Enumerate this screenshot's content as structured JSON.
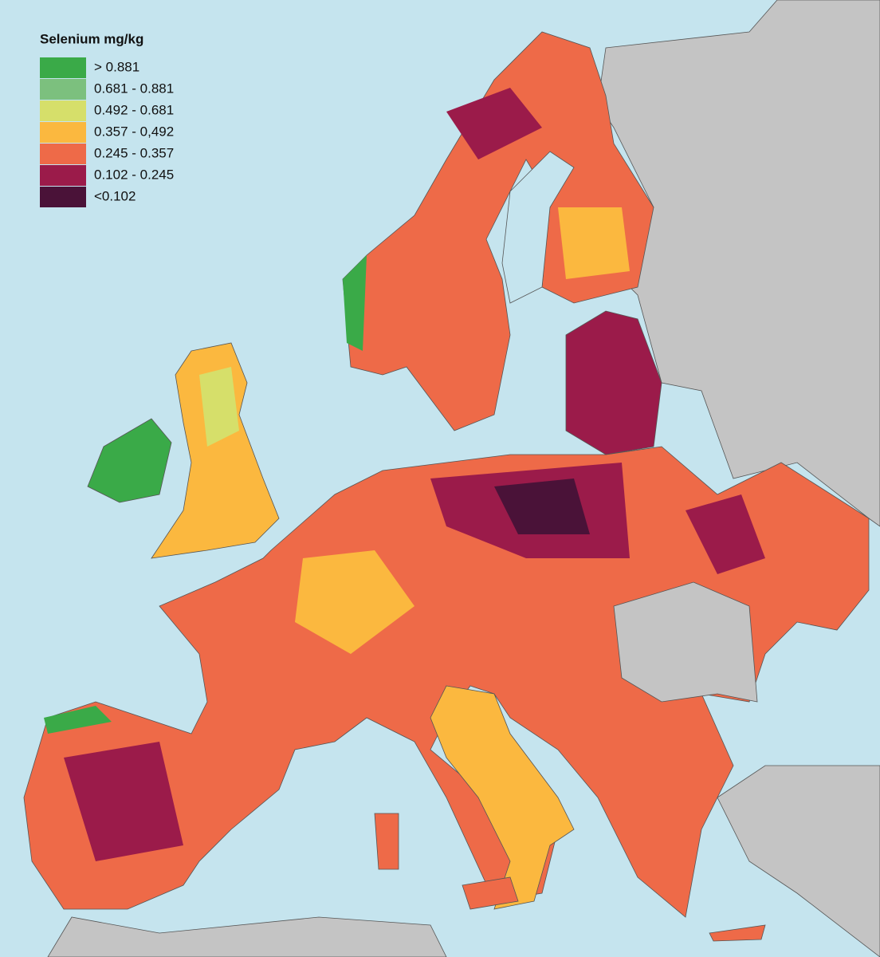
{
  "legend": {
    "title": "Selenium mg/kg",
    "items": [
      {
        "label": "> 0.881",
        "color": "#3aaa48"
      },
      {
        "label": "0.681 - 0.881",
        "color": "#7cc07e"
      },
      {
        "label": "0.492 - 0.681",
        "color": "#d6df6a"
      },
      {
        "label": "0.357 - 0,492",
        "color": "#fbb83f"
      },
      {
        "label": "0.245 - 0.357",
        "color": "#ee6a48"
      },
      {
        "label": "0.102 - 0.245",
        "color": "#9b1b4a"
      },
      {
        "label": "<0.102",
        "color": "#4a1238"
      }
    ]
  }
}
